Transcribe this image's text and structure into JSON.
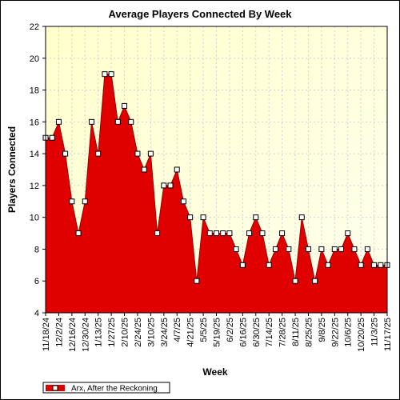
{
  "colors": {
    "plot_bg_top": "#ffffcc",
    "plot_bg_bottom": "#ffffee",
    "series_fill": "#e00000",
    "series_line": "#990000",
    "marker_fill": "#ffffff",
    "grid": "#d0d0d0"
  },
  "chart_data": {
    "type": "area",
    "title": "Average Players Connected By Week",
    "xlabel": "Week",
    "ylabel": "Players Connected",
    "ylim": [
      4,
      22
    ],
    "yticks": [
      4,
      6,
      8,
      10,
      12,
      14,
      16,
      18,
      20,
      22
    ],
    "grid": true,
    "legend": "bottom-left",
    "x_tick_labels": [
      "11/18/24",
      "12/2/24",
      "12/16/24",
      "12/30/24",
      "1/13/25",
      "1/27/25",
      "2/10/25",
      "2/24/25",
      "3/10/25",
      "3/24/25",
      "4/7/25",
      "4/21/25",
      "5/5/25",
      "5/19/25",
      "6/2/25",
      "6/16/25",
      "6/30/25",
      "7/14/25",
      "7/28/25",
      "8/11/25",
      "8/25/25",
      "9/8/25",
      "9/22/25",
      "10/6/25",
      "10/20/25",
      "11/3/25",
      "11/17/25"
    ],
    "series": [
      {
        "name": "Arx, After the Reckoning",
        "values": [
          15,
          15,
          16,
          14,
          11,
          9,
          11,
          16,
          14,
          19,
          19,
          16,
          17,
          16,
          14,
          13,
          14,
          9,
          12,
          12,
          13,
          11,
          10,
          6,
          10,
          9,
          9,
          9,
          9,
          8,
          7,
          9,
          10,
          9,
          7,
          8,
          9,
          8,
          6,
          10,
          8,
          6,
          8,
          7,
          8,
          8,
          9,
          8,
          7,
          8,
          7,
          7,
          7
        ]
      }
    ]
  }
}
